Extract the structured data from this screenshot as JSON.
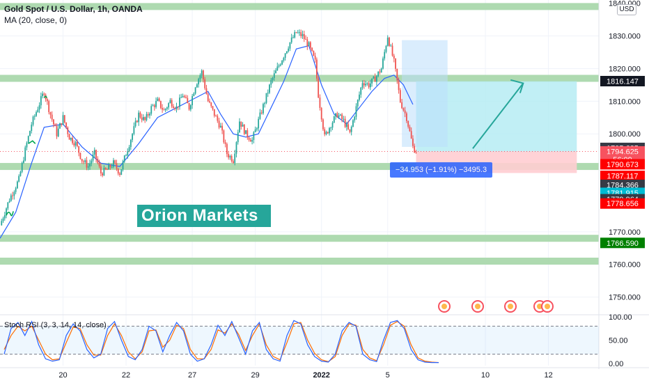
{
  "header": {
    "title": "Gold Spot / U.S. Dollar, 1h, OANDA",
    "ma_label": "MA (20, close, 0)",
    "currency_button": "USD",
    "stoch_label": "Stoch RSI (3, 3, 14, 14, close)"
  },
  "watermark": "Orion Markets",
  "measure_label": "−34.953 (−1.91%) −3495.3",
  "chart_data": {
    "type": "line",
    "title": "Gold Spot / U.S. Dollar, 1h, OANDA",
    "xlabel": "",
    "ylabel": "",
    "x_ticks": [
      "20",
      "22",
      "27",
      "29",
      "2022",
      "5",
      "10",
      "12"
    ],
    "y_ticks": [
      "1760.000",
      "1770.000",
      "1800.000",
      "1810.000",
      "1820.000",
      "1830.000",
      "1750.000"
    ],
    "ylim": [
      1745,
      1841
    ],
    "price_path": [
      [
        0,
        1772
      ],
      [
        3,
        1780
      ],
      [
        6,
        1786
      ],
      [
        8,
        1795
      ],
      [
        10,
        1803
      ],
      [
        12,
        1808
      ],
      [
        14,
        1813
      ],
      [
        16,
        1806
      ],
      [
        18,
        1800
      ],
      [
        20,
        1805
      ],
      [
        22,
        1799
      ],
      [
        24,
        1797
      ],
      [
        26,
        1792
      ],
      [
        28,
        1790
      ],
      [
        30,
        1794
      ],
      [
        32,
        1788
      ],
      [
        34,
        1789
      ],
      [
        36,
        1791
      ],
      [
        38,
        1788
      ],
      [
        40,
        1794
      ],
      [
        42,
        1800
      ],
      [
        44,
        1806
      ],
      [
        46,
        1804
      ],
      [
        48,
        1808
      ],
      [
        50,
        1810
      ],
      [
        52,
        1807
      ],
      [
        54,
        1810
      ],
      [
        56,
        1808
      ],
      [
        58,
        1812
      ],
      [
        60,
        1808
      ],
      [
        62,
        1815
      ],
      [
        64,
        1819
      ],
      [
        66,
        1810
      ],
      [
        68,
        1806
      ],
      [
        70,
        1802
      ],
      [
        72,
        1794
      ],
      [
        74,
        1792
      ],
      [
        76,
        1804
      ],
      [
        78,
        1800
      ],
      [
        80,
        1798
      ],
      [
        82,
        1804
      ],
      [
        84,
        1810
      ],
      [
        86,
        1816
      ],
      [
        88,
        1820
      ],
      [
        90,
        1824
      ],
      [
        92,
        1828
      ],
      [
        94,
        1831
      ],
      [
        96,
        1830
      ],
      [
        98,
        1827
      ],
      [
        100,
        1822
      ],
      [
        101,
        1812
      ],
      [
        103,
        1799
      ],
      [
        105,
        1803
      ],
      [
        107,
        1806
      ],
      [
        109,
        1804
      ],
      [
        111,
        1800
      ],
      [
        113,
        1808
      ],
      [
        115,
        1816
      ],
      [
        117,
        1815
      ],
      [
        119,
        1817
      ],
      [
        121,
        1820
      ],
      [
        123,
        1830
      ],
      [
        125,
        1822
      ],
      [
        127,
        1810
      ],
      [
        129,
        1805
      ],
      [
        131,
        1796
      ],
      [
        132,
        1794.6
      ]
    ],
    "ma20_path": [
      [
        0,
        1768
      ],
      [
        5,
        1776
      ],
      [
        10,
        1791
      ],
      [
        14,
        1802
      ],
      [
        20,
        1803
      ],
      [
        26,
        1796
      ],
      [
        32,
        1791
      ],
      [
        38,
        1790
      ],
      [
        44,
        1797
      ],
      [
        50,
        1805
      ],
      [
        56,
        1808
      ],
      [
        62,
        1811
      ],
      [
        66,
        1813
      ],
      [
        70,
        1806
      ],
      [
        74,
        1800
      ],
      [
        78,
        1799
      ],
      [
        82,
        1800
      ],
      [
        86,
        1808
      ],
      [
        90,
        1816
      ],
      [
        94,
        1826
      ],
      [
        98,
        1827
      ],
      [
        102,
        1815
      ],
      [
        106,
        1806
      ],
      [
        110,
        1803
      ],
      [
        114,
        1808
      ],
      [
        118,
        1813
      ],
      [
        122,
        1817
      ],
      [
        125,
        1818
      ],
      [
        128,
        1815
      ],
      [
        131,
        1809
      ]
    ],
    "horizontal_zones": [
      1839,
      1817,
      1790,
      1768,
      1761
    ],
    "position_tool": {
      "entry": 1794.6,
      "target": 1816.1,
      "stop": 1788.0,
      "x_start": 132,
      "x_end": 183
    },
    "price_labels": [
      {
        "value": "1816.147",
        "color": "#131722",
        "price": 1816.147
      },
      {
        "value": "1795.685",
        "color": "#363a45",
        "price": 1795.685
      },
      {
        "value": "1794.625",
        "color": "#f7525f",
        "price": 1794.625
      },
      {
        "value": "56:09",
        "color": "#f7525f",
        "price": 1792.2
      },
      {
        "value": "1790.673",
        "color": "#ff0000",
        "price": 1790.673
      },
      {
        "value": "1787.117",
        "color": "#ff0000",
        "price": 1787.117
      },
      {
        "value": "1784.366",
        "color": "#363a45",
        "price": 1784.366
      },
      {
        "value": "1781.915",
        "color": "#00bcd4",
        "price": 1781.915
      },
      {
        "value": "1779.964",
        "color": "#363a45",
        "price": 1779.964
      },
      {
        "value": "1778.656",
        "color": "#ff0000",
        "price": 1778.656
      },
      {
        "value": "1766.590",
        "color": "#008000",
        "price": 1766.59
      }
    ],
    "stoch": {
      "ylim": [
        0,
        100
      ],
      "y_ticks": [
        "100.00",
        "50.00",
        "0.00"
      ],
      "bands": [
        80,
        20
      ],
      "k": [
        20,
        75,
        88,
        60,
        90,
        40,
        10,
        5,
        8,
        60,
        85,
        70,
        30,
        12,
        20,
        75,
        90,
        50,
        15,
        8,
        30,
        80,
        70,
        25,
        60,
        88,
        70,
        20,
        5,
        10,
        40,
        82,
        60,
        90,
        55,
        20,
        70,
        88,
        30,
        10,
        5,
        60,
        92,
        85,
        40,
        15,
        5,
        3,
        20,
        70,
        88,
        80,
        20,
        8,
        4,
        50,
        88,
        92,
        75,
        30,
        8,
        3,
        2,
        2
      ],
      "d": [
        30,
        60,
        80,
        70,
        80,
        50,
        20,
        8,
        10,
        45,
        78,
        75,
        40,
        18,
        18,
        60,
        85,
        60,
        25,
        10,
        25,
        70,
        72,
        35,
        50,
        82,
        75,
        30,
        10,
        10,
        30,
        72,
        65,
        85,
        62,
        28,
        60,
        85,
        40,
        15,
        8,
        45,
        85,
        88,
        50,
        22,
        8,
        4,
        15,
        60,
        85,
        82,
        30,
        12,
        6,
        40,
        82,
        90,
        80,
        40,
        12,
        5,
        3,
        2
      ]
    }
  }
}
